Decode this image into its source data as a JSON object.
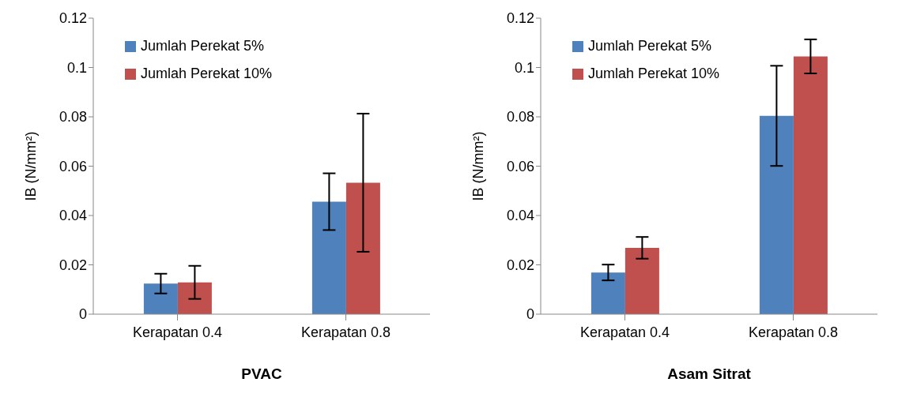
{
  "chart_data": [
    {
      "type": "bar",
      "xlabel": "PVAC",
      "ylabel": "IB (N/mm²)",
      "categories": [
        "Kerapatan 0.4",
        "Kerapatan 0.8"
      ],
      "series": [
        {
          "name": "Jumlah Perekat 5%",
          "color": "#4f81bd",
          "values": [
            0.0124,
            0.0456
          ],
          "errors": [
            0.004,
            0.0115
          ]
        },
        {
          "name": "Jumlah Perekat 10%",
          "color": "#c0504d",
          "values": [
            0.0129,
            0.0533
          ],
          "errors": [
            0.0067,
            0.028
          ]
        }
      ],
      "ylim": [
        0,
        0.12
      ],
      "yticks": [
        0,
        0.02,
        0.04,
        0.06,
        0.08,
        0.1,
        0.12
      ],
      "grid": false,
      "legend": "top left"
    },
    {
      "type": "bar",
      "xlabel": "Asam Sitrat",
      "ylabel": "IB (N/mm²)",
      "categories": [
        "Kerapatan 0.4",
        "Kerapatan 0.8"
      ],
      "series": [
        {
          "name": "Jumlah Perekat 5%",
          "color": "#4f81bd",
          "values": [
            0.0169,
            0.0804
          ],
          "errors": [
            0.0032,
            0.0203
          ]
        },
        {
          "name": "Jumlah Perekat 10%",
          "color": "#c0504d",
          "values": [
            0.0269,
            0.1045
          ],
          "errors": [
            0.0044,
            0.0069
          ]
        }
      ],
      "ylim": [
        0,
        0.12
      ],
      "yticks": [
        0,
        0.02,
        0.04,
        0.06,
        0.08,
        0.1,
        0.12
      ],
      "grid": false,
      "legend": "top left"
    }
  ]
}
